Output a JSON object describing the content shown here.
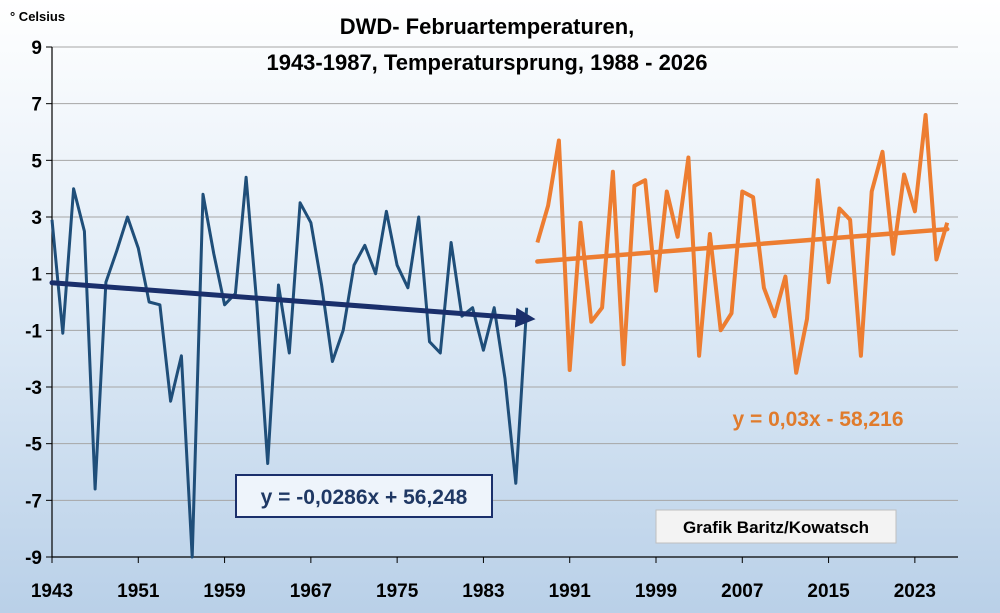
{
  "chart_data": {
    "type": "line",
    "title_line1": "DWD- Februartemperaturen,",
    "title_line2": "1943-1987, Temperatursprung, 1988 - 2026",
    "ylabel": "° Celsius",
    "ylim": [
      -9,
      9
    ],
    "yticks": [
      9,
      7,
      5,
      3,
      1,
      -1,
      -3,
      -5,
      -7,
      -9
    ],
    "xlim": [
      1943,
      2027
    ],
    "xticks": [
      1943,
      1951,
      1959,
      1967,
      1975,
      1983,
      1991,
      1999,
      2007,
      2015,
      2023
    ],
    "grid": true,
    "series": [
      {
        "color": "#1f4e79",
        "x": [
          1943,
          1944,
          1945,
          1946,
          1947,
          1948,
          1949,
          1950,
          1951,
          1952,
          1953,
          1954,
          1955,
          1956,
          1957,
          1958,
          1959,
          1960,
          1961,
          1962,
          1963,
          1964,
          1965,
          1966,
          1967,
          1968,
          1969,
          1970,
          1971,
          1972,
          1973,
          1974,
          1975,
          1976,
          1977,
          1978,
          1979,
          1980,
          1981,
          1982,
          1983,
          1984,
          1985,
          1986,
          1987
        ],
        "y": [
          2.9,
          -1.1,
          4.0,
          2.5,
          -6.6,
          0.7,
          1.8,
          3.0,
          1.9,
          0.0,
          -0.1,
          -3.5,
          -1.9,
          -9.0,
          3.8,
          1.7,
          -0.1,
          0.3,
          4.4,
          -0.1,
          -5.7,
          0.6,
          -1.8,
          3.5,
          2.8,
          0.6,
          -2.1,
          -1.0,
          1.3,
          2.0,
          1.0,
          3.2,
          1.3,
          0.5,
          3.0,
          -1.4,
          -1.8,
          2.1,
          -0.5,
          -0.2,
          -1.7,
          -0.2,
          -2.7,
          -6.4,
          -0.2
        ]
      },
      {
        "color": "#ed7d31",
        "x": [
          1988,
          1989,
          1990,
          1991,
          1992,
          1993,
          1994,
          1995,
          1996,
          1997,
          1998,
          1999,
          2000,
          2001,
          2002,
          2003,
          2004,
          2005,
          2006,
          2007,
          2008,
          2009,
          2010,
          2011,
          2012,
          2013,
          2014,
          2015,
          2016,
          2017,
          2018,
          2019,
          2020,
          2021,
          2022,
          2023,
          2024,
          2025,
          2026
        ],
        "y": [
          2.1,
          3.4,
          5.7,
          -2.4,
          2.8,
          -0.7,
          -0.2,
          4.6,
          -2.2,
          4.1,
          4.3,
          0.4,
          3.9,
          2.3,
          5.1,
          -1.9,
          2.4,
          -1.0,
          -0.4,
          3.9,
          3.7,
          0.5,
          -0.5,
          0.9,
          -2.5,
          -0.6,
          4.3,
          0.7,
          3.3,
          2.9,
          -1.9,
          3.9,
          5.3,
          1.7,
          4.5,
          3.2,
          6.6,
          1.5,
          2.8
        ]
      }
    ],
    "trendlines": [
      {
        "label": "y = -0,0286x + 56,248",
        "color": "#1a2f6b",
        "x": [
          1943,
          1987
        ],
        "y": [
          0.68,
          -0.58
        ]
      },
      {
        "label": "y = 0,03x - 58,216",
        "color": "#ed7d31",
        "x": [
          1988,
          2026
        ],
        "y": [
          1.43,
          2.57
        ]
      }
    ],
    "annotations": [
      {
        "text": "Grafik  Baritz/Kowatsch"
      }
    ]
  }
}
